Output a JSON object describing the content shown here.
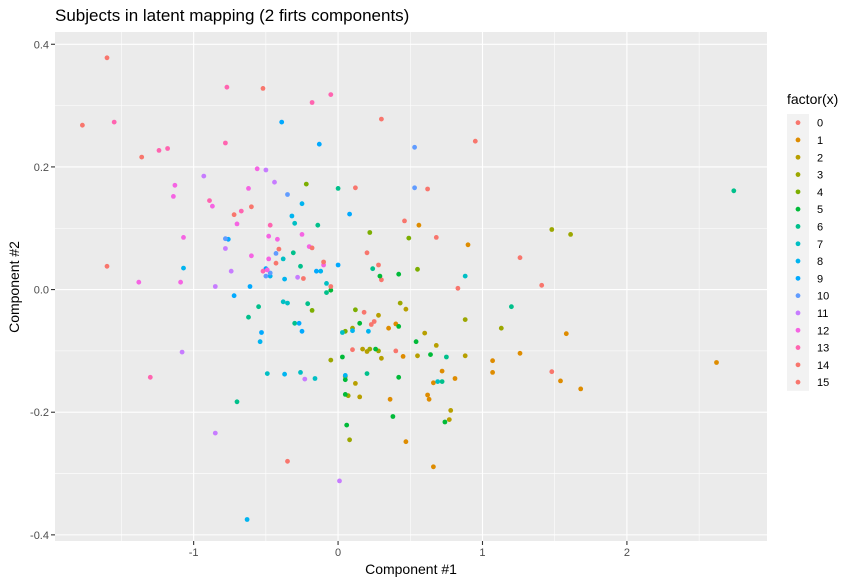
{
  "chart_data": {
    "type": "scatter",
    "title": "Subjects in latent mapping (2 firts components)",
    "xlabel": "Component #1",
    "ylabel": "Component #2",
    "xlim": [
      -1.96,
      2.97
    ],
    "ylim": [
      -0.41,
      0.42
    ],
    "x_ticks": [
      -1,
      0,
      1,
      2
    ],
    "y_ticks": [
      -0.4,
      -0.2,
      0.0,
      0.2,
      0.4
    ],
    "x_tick_labels": [
      "-1",
      "0",
      "1",
      "2"
    ],
    "y_tick_labels": [
      "-0.4",
      "-0.2",
      "0.0",
      "0.2",
      "0.4"
    ],
    "grid": true,
    "legend": {
      "title": "factor(x)",
      "position": "right",
      "entries": [
        {
          "label": "0",
          "color": "#F8766D"
        },
        {
          "label": "1",
          "color": "#DE8C00"
        },
        {
          "label": "2",
          "color": "#B79F00"
        },
        {
          "label": "3",
          "color": "#9CA700"
        },
        {
          "label": "4",
          "color": "#7CAE00"
        },
        {
          "label": "5",
          "color": "#00BA38"
        },
        {
          "label": "6",
          "color": "#00C08B"
        },
        {
          "label": "7",
          "color": "#00BFC4"
        },
        {
          "label": "8",
          "color": "#00B4F0"
        },
        {
          "label": "9",
          "color": "#00A9FF"
        },
        {
          "label": "10",
          "color": "#619CFF"
        },
        {
          "label": "11",
          "color": "#C77CFF"
        },
        {
          "label": "12",
          "color": "#F564E3"
        },
        {
          "label": "13",
          "color": "#FF64B0"
        },
        {
          "label": "14",
          "color": "#F8766D"
        },
        {
          "label": "15",
          "color": "#F8766D"
        }
      ]
    },
    "series": [
      {
        "group": 0,
        "color": "#F8766D",
        "points": [
          [
            -1.6,
            0.378
          ],
          [
            -1.77,
            0.268
          ],
          [
            -1.36,
            0.216
          ],
          [
            -0.52,
            0.328
          ],
          [
            -0.35,
            -0.28
          ],
          [
            0.3,
            0.278
          ],
          [
            0.95,
            0.242
          ],
          [
            0.62,
            0.164
          ],
          [
            0.68,
            0.085
          ],
          [
            0.46,
            0.112
          ],
          [
            1.26,
            0.052
          ],
          [
            1.41,
            0.007
          ],
          [
            1.48,
            -0.134
          ],
          [
            0.83,
            0.002
          ],
          [
            0.12,
            0.166
          ],
          [
            0.2,
            0.06
          ],
          [
            0.28,
            0.04
          ],
          [
            0.25,
            -0.052
          ],
          [
            0.1,
            -0.098
          ],
          [
            0.3,
            0.016
          ]
        ]
      },
      {
        "group": 1,
        "color": "#DE8C00",
        "points": [
          [
            2.62,
            -0.119
          ],
          [
            1.68,
            -0.162
          ],
          [
            1.58,
            -0.072
          ],
          [
            1.54,
            -0.149
          ],
          [
            1.26,
            -0.104
          ],
          [
            1.07,
            -0.116
          ],
          [
            1.07,
            -0.135
          ],
          [
            0.9,
            0.073
          ],
          [
            0.81,
            -0.145
          ],
          [
            0.72,
            -0.133
          ],
          [
            0.66,
            -0.152
          ],
          [
            0.62,
            -0.172
          ],
          [
            0.63,
            -0.179
          ],
          [
            0.66,
            -0.289
          ],
          [
            0.47,
            -0.248
          ],
          [
            0.35,
            -0.063
          ],
          [
            0.56,
            0.105
          ],
          [
            0.4,
            -0.056
          ],
          [
            0.45,
            -0.109
          ],
          [
            0.36,
            -0.179
          ]
        ]
      },
      {
        "group": 2,
        "color": "#B79F00",
        "points": [
          [
            0.78,
            -0.197
          ],
          [
            0.77,
            -0.212
          ],
          [
            0.88,
            -0.108
          ],
          [
            0.68,
            -0.091
          ],
          [
            0.6,
            -0.071
          ],
          [
            0.55,
            -0.108
          ],
          [
            0.47,
            -0.032
          ],
          [
            0.28,
            -0.042
          ],
          [
            0.17,
            -0.097
          ],
          [
            0.2,
            -0.101
          ],
          [
            0.12,
            -0.153
          ],
          [
            0.05,
            -0.142
          ],
          [
            0.15,
            -0.175
          ],
          [
            0.3,
            -0.112
          ]
        ]
      },
      {
        "group": 3,
        "color": "#9CA700",
        "points": [
          [
            1.48,
            0.098
          ],
          [
            1.61,
            0.09
          ],
          [
            1.13,
            -0.063
          ],
          [
            0.88,
            -0.049
          ],
          [
            0.28,
            -0.1
          ],
          [
            0.43,
            -0.022
          ],
          [
            0.22,
            -0.097
          ],
          [
            0.1,
            -0.063
          ],
          [
            0.08,
            -0.245
          ],
          [
            0.07,
            -0.173
          ],
          [
            -0.05,
            -0.115
          ]
        ]
      },
      {
        "group": 4,
        "color": "#7CAE00",
        "points": [
          [
            -0.22,
            0.172
          ],
          [
            0.22,
            0.093
          ],
          [
            0.49,
            0.084
          ],
          [
            0.55,
            0.033
          ],
          [
            -0.18,
            -0.034
          ],
          [
            0.05,
            -0.068
          ],
          [
            0.12,
            -0.033
          ]
        ]
      },
      {
        "group": 5,
        "color": "#00BA38",
        "points": [
          [
            0.26,
            -0.097
          ],
          [
            0.42,
            -0.06
          ],
          [
            0.42,
            -0.143
          ],
          [
            0.54,
            -0.085
          ],
          [
            0.74,
            -0.216
          ],
          [
            0.64,
            -0.106
          ],
          [
            0.38,
            -0.207
          ],
          [
            0.05,
            -0.171
          ],
          [
            0.06,
            -0.221
          ],
          [
            0.03,
            -0.11
          ],
          [
            0.05,
            -0.147
          ],
          [
            0.29,
            0.022
          ],
          [
            0.42,
            0.025
          ],
          [
            0.15,
            -0.055
          ],
          [
            -0.05,
            -0.001
          ]
        ]
      },
      {
        "group": 6,
        "color": "#00C08B",
        "points": [
          [
            2.74,
            0.161
          ],
          [
            1.2,
            -0.028
          ],
          [
            0.75,
            -0.11
          ],
          [
            0.72,
            -0.15
          ],
          [
            0.2,
            -0.137
          ],
          [
            0.24,
            0.034
          ],
          [
            0.0,
            0.165
          ],
          [
            -0.14,
            0.105
          ],
          [
            -0.08,
            -0.005
          ],
          [
            -0.21,
            -0.023
          ],
          [
            -0.7,
            -0.183
          ],
          [
            -0.55,
            -0.028
          ],
          [
            -0.62,
            -0.045
          ],
          [
            -0.31,
            0.06
          ],
          [
            -0.26,
            0.038
          ],
          [
            -0.3,
            -0.055
          ]
        ]
      },
      {
        "group": 7,
        "color": "#00BFC4",
        "points": [
          [
            0.88,
            0.022
          ],
          [
            0.69,
            -0.15
          ],
          [
            -0.38,
            -0.02
          ],
          [
            -0.16,
            -0.145
          ],
          [
            -0.26,
            -0.135
          ],
          [
            -0.49,
            -0.137
          ],
          [
            -0.38,
            0.05
          ],
          [
            -0.08,
            0.01
          ],
          [
            0.03,
            -0.07
          ],
          [
            -0.3,
            0.108
          ],
          [
            -0.35,
            -0.022
          ]
        ]
      },
      {
        "group": 8,
        "color": "#00B4F0",
        "points": [
          [
            -0.63,
            -0.375
          ],
          [
            -0.54,
            -0.085
          ],
          [
            -0.37,
            -0.138
          ],
          [
            -0.47,
            0.022
          ],
          [
            -0.12,
            0.03
          ],
          [
            -0.25,
            0.14
          ],
          [
            -0.32,
            0.12
          ],
          [
            0.05,
            -0.14
          ],
          [
            0.1,
            -0.067
          ],
          [
            0.21,
            -0.068
          ],
          [
            -0.37,
            0.017
          ],
          [
            -1.07,
            0.035
          ]
        ]
      },
      {
        "group": 9,
        "color": "#00A9FF",
        "points": [
          [
            -0.39,
            0.273
          ],
          [
            -0.13,
            0.237
          ],
          [
            -0.72,
            -0.01
          ],
          [
            -0.61,
            0.005
          ],
          [
            -0.76,
            0.082
          ],
          [
            -0.5,
            0.034
          ],
          [
            -0.25,
            -0.068
          ],
          [
            -0.15,
            0.03
          ],
          [
            0.0,
            0.04
          ],
          [
            -0.53,
            -0.07
          ],
          [
            -0.27,
            -0.055
          ],
          [
            0.08,
            0.123
          ]
        ]
      },
      {
        "group": 10,
        "color": "#619CFF",
        "points": [
          [
            0.53,
            0.232
          ],
          [
            0.53,
            0.166
          ],
          [
            -0.78,
            0.083
          ],
          [
            -0.5,
            0.022
          ],
          [
            -0.47,
            0.027
          ],
          [
            -0.35,
            0.155
          ],
          [
            -0.43,
            0.059
          ]
        ]
      },
      {
        "group": 11,
        "color": "#C77CFF",
        "points": [
          [
            -0.23,
            -0.146
          ],
          [
            0.01,
            -0.312
          ],
          [
            -0.85,
            -0.234
          ],
          [
            -0.93,
            0.185
          ],
          [
            -0.85,
            0.005
          ],
          [
            -1.08,
            -0.102
          ],
          [
            -0.74,
            0.03
          ],
          [
            -0.78,
            0.067
          ],
          [
            -0.5,
            0.195
          ],
          [
            -0.44,
            0.175
          ],
          [
            -0.28,
            0.02
          ]
        ]
      },
      {
        "group": 12,
        "color": "#F564E3",
        "points": [
          [
            -0.56,
            0.197
          ],
          [
            -0.62,
            0.165
          ],
          [
            -1.13,
            0.17
          ],
          [
            -1.14,
            0.152
          ],
          [
            -0.87,
            0.136
          ],
          [
            -0.7,
            0.107
          ],
          [
            -0.6,
            0.055
          ],
          [
            -0.48,
            0.05
          ],
          [
            -0.42,
            0.082
          ],
          [
            -0.49,
            0.032
          ],
          [
            -0.25,
            0.09
          ],
          [
            -0.2,
            0.07
          ],
          [
            -0.1,
            0.04
          ],
          [
            -1.07,
            0.085
          ],
          [
            -1.38,
            0.012
          ],
          [
            -1.09,
            0.012
          ],
          [
            -0.48,
            0.087
          ]
        ]
      },
      {
        "group": 13,
        "color": "#FF64B0",
        "points": [
          [
            -0.77,
            0.33
          ],
          [
            -0.18,
            0.305
          ],
          [
            -0.05,
            0.318
          ],
          [
            -1.55,
            0.273
          ],
          [
            -1.24,
            0.227
          ],
          [
            -1.18,
            0.23
          ],
          [
            -0.78,
            0.239
          ],
          [
            -0.47,
            0.105
          ],
          [
            -0.52,
            0.03
          ],
          [
            -1.3,
            -0.143
          ],
          [
            -0.89,
            0.145
          ],
          [
            -0.67,
            0.128
          ]
        ]
      },
      {
        "group": 14,
        "color": "#F8766D",
        "points": [
          [
            -1.6,
            0.038
          ],
          [
            -0.41,
            0.066
          ],
          [
            -0.43,
            0.043
          ],
          [
            -0.18,
            0.068
          ],
          [
            -0.1,
            0.045
          ],
          [
            0.18,
            -0.037
          ],
          [
            -0.05,
            0.005
          ]
        ]
      },
      {
        "group": 15,
        "color": "#F8766D",
        "points": [
          [
            -0.72,
            0.122
          ],
          [
            -0.6,
            0.135
          ],
          [
            -0.24,
            0.018
          ],
          [
            0.23,
            -0.057
          ],
          [
            0.4,
            -0.1
          ]
        ]
      }
    ]
  }
}
